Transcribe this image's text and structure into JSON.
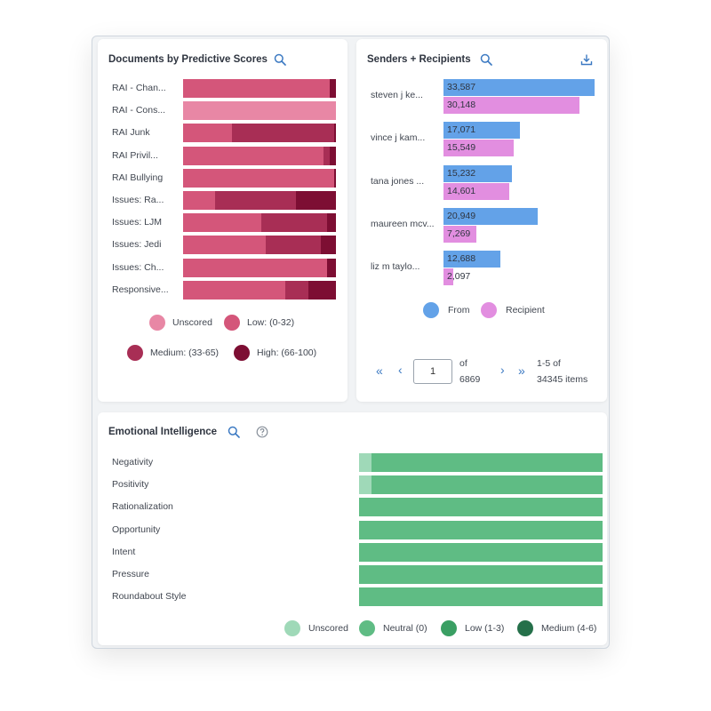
{
  "colors": {
    "unscored": "#e887a5",
    "low": "#d4567a",
    "medium": "#a82e55",
    "high": "#7d0e33",
    "from": "#63a2e8",
    "recipient": "#e28ee0",
    "emo_unscored": "#9fd9b8",
    "emo_neutral": "#5fbc84",
    "emo_low": "#3a9f63",
    "emo_medium": "#25704a",
    "accent": "#3b79c2"
  },
  "scores_card": {
    "title": "Documents by Predictive Scores"
  },
  "senders_card": {
    "title": "Senders + Recipients",
    "pagination": {
      "first": "«",
      "prev": "‹",
      "next": "›",
      "last": "»",
      "page_value": "1",
      "of_label": "of",
      "total_pages": "6869",
      "range_text": "1-5 of",
      "items_text": "34345 items"
    }
  },
  "emotion_card": {
    "title": "Emotional Intelligence"
  },
  "chart_data": [
    {
      "type": "bar",
      "orientation": "horizontal-stacked-percent",
      "title": "Documents by Predictive Scores",
      "categories": [
        "RAI - Chan...",
        "RAI - Cons...",
        "RAI Junk",
        "RAI Privil...",
        "RAI Bullying",
        "Issues: Ra...",
        "Issues: LJM",
        "Issues: Jedi",
        "Issues: Ch...",
        "Responsive..."
      ],
      "series": [
        {
          "name": "Unscored",
          "values": [
            0,
            100,
            0,
            0,
            0,
            0,
            0,
            0,
            0,
            0
          ]
        },
        {
          "name": "Low: (0-32)",
          "values": [
            96,
            0,
            32,
            92,
            99,
            21,
            51,
            54,
            94,
            67
          ]
        },
        {
          "name": "Medium: (33-65)",
          "values": [
            0,
            0,
            67,
            4,
            0,
            53,
            43,
            36,
            0,
            15
          ]
        },
        {
          "name": "High: (66-100)",
          "values": [
            4,
            0,
            1,
            4,
            1,
            26,
            6,
            10,
            6,
            18
          ]
        }
      ],
      "legend": "bottom"
    },
    {
      "type": "bar",
      "orientation": "horizontal-grouped",
      "title": "Senders + Recipients",
      "categories": [
        "steven j ke...",
        "vince j kam...",
        "tana jones ...",
        "maureen mcv...",
        "liz m taylo..."
      ],
      "series": [
        {
          "name": "From",
          "values": [
            33587,
            17071,
            15232,
            20949,
            12688
          ]
        },
        {
          "name": "Recipient",
          "values": [
            30148,
            15549,
            14601,
            7269,
            2097
          ]
        }
      ],
      "value_labels": {
        "From": [
          "33,587",
          "17,071",
          "15,232",
          "20,949",
          "12,688"
        ],
        "Recipient": [
          "30,148",
          "15,549",
          "14,601",
          "7,269",
          "2,097"
        ]
      },
      "xlim": [
        0,
        34000
      ],
      "legend": "bottom"
    },
    {
      "type": "bar",
      "orientation": "horizontal-stacked-percent",
      "title": "Emotional Intelligence",
      "categories": [
        "Negativity",
        "Positivity",
        "Rationalization",
        "Opportunity",
        "Intent",
        "Pressure",
        "Roundabout Style"
      ],
      "series": [
        {
          "name": "Unscored",
          "values": [
            5,
            5,
            0,
            0,
            0,
            0,
            0
          ]
        },
        {
          "name": "Neutral (0)",
          "values": [
            95,
            95,
            100,
            100,
            100,
            100,
            100
          ]
        },
        {
          "name": "Low (1-3)",
          "values": [
            0,
            0,
            0,
            0,
            0,
            0,
            0
          ]
        },
        {
          "name": "Medium (4-6)",
          "values": [
            0,
            0,
            0,
            0,
            0,
            0,
            0
          ]
        }
      ],
      "legend": "bottom-right"
    }
  ]
}
